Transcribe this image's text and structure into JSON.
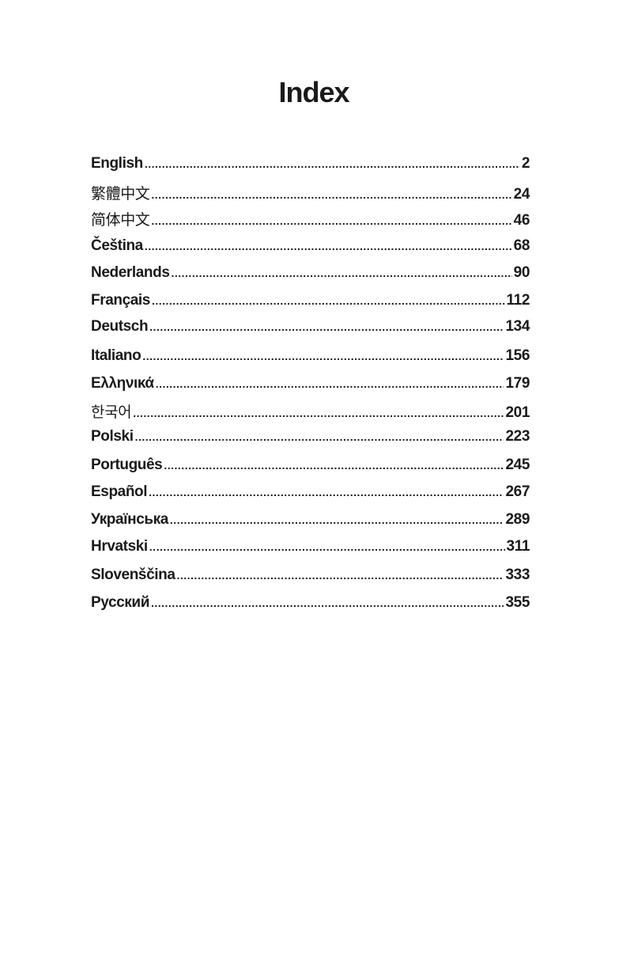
{
  "title": "Index",
  "entries": [
    {
      "label": "English",
      "page": "2"
    },
    {
      "label": "繁體中文",
      "page": "24"
    },
    {
      "label": "简体中文",
      "page": "46"
    },
    {
      "label": "Čeština",
      "page": "68"
    },
    {
      "label": "Nederlands",
      "page": "90"
    },
    {
      "label": "Français",
      "page": "112"
    },
    {
      "label": "Deutsch",
      "page": "134"
    },
    {
      "label": "Italiano",
      "page": "156"
    },
    {
      "label": "Ελληνικά",
      "page": "179"
    },
    {
      "label": "한국어",
      "page": "201"
    },
    {
      "label": "Polski",
      "page": "223"
    },
    {
      "label": "Português",
      "page": "245"
    },
    {
      "label": "Español",
      "page": "267"
    },
    {
      "label": "Українська",
      "page": "289"
    },
    {
      "label": "Hrvatski",
      "page": "311"
    },
    {
      "label": "Slovenščina",
      "page": "333"
    },
    {
      "label": "Русский",
      "page": "355"
    }
  ]
}
